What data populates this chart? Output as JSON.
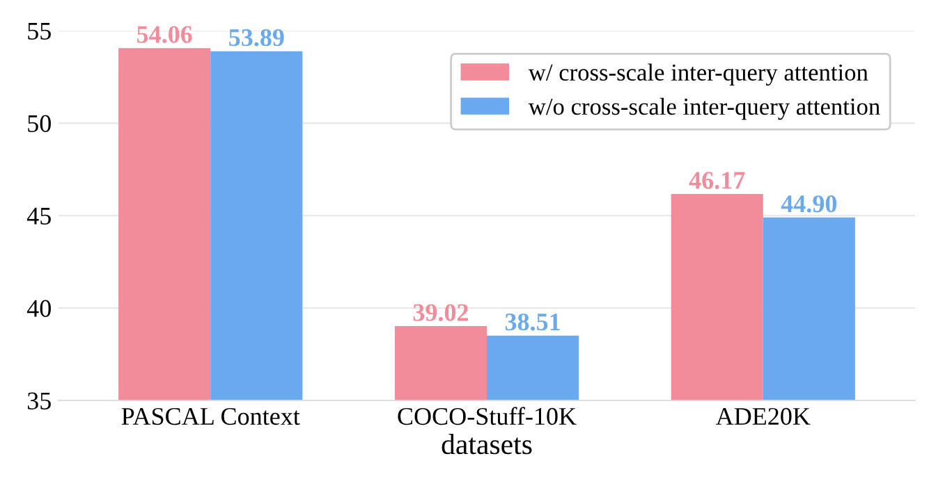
{
  "chart_data": {
    "type": "bar",
    "xlabel": "datasets",
    "categories": [
      "PASCAL Context",
      "COCO-Stuff-10K",
      "ADE20K"
    ],
    "series": [
      {
        "name": "w/ cross-scale inter-query attention",
        "color": "#f28b9a",
        "values": [
          54.06,
          39.02,
          46.17
        ],
        "value_labels": [
          "54.06",
          "39.02",
          "46.17"
        ]
      },
      {
        "name": "w/o cross-scale inter-query attention",
        "color": "#6aa9f0",
        "values": [
          53.89,
          38.51,
          44.9
        ],
        "value_labels": [
          "53.89",
          "38.51",
          "44.90"
        ]
      }
    ],
    "ylim": [
      35,
      55
    ],
    "yticks": [
      35,
      40,
      45,
      50,
      55
    ],
    "grid": "y",
    "legend": "top right"
  }
}
